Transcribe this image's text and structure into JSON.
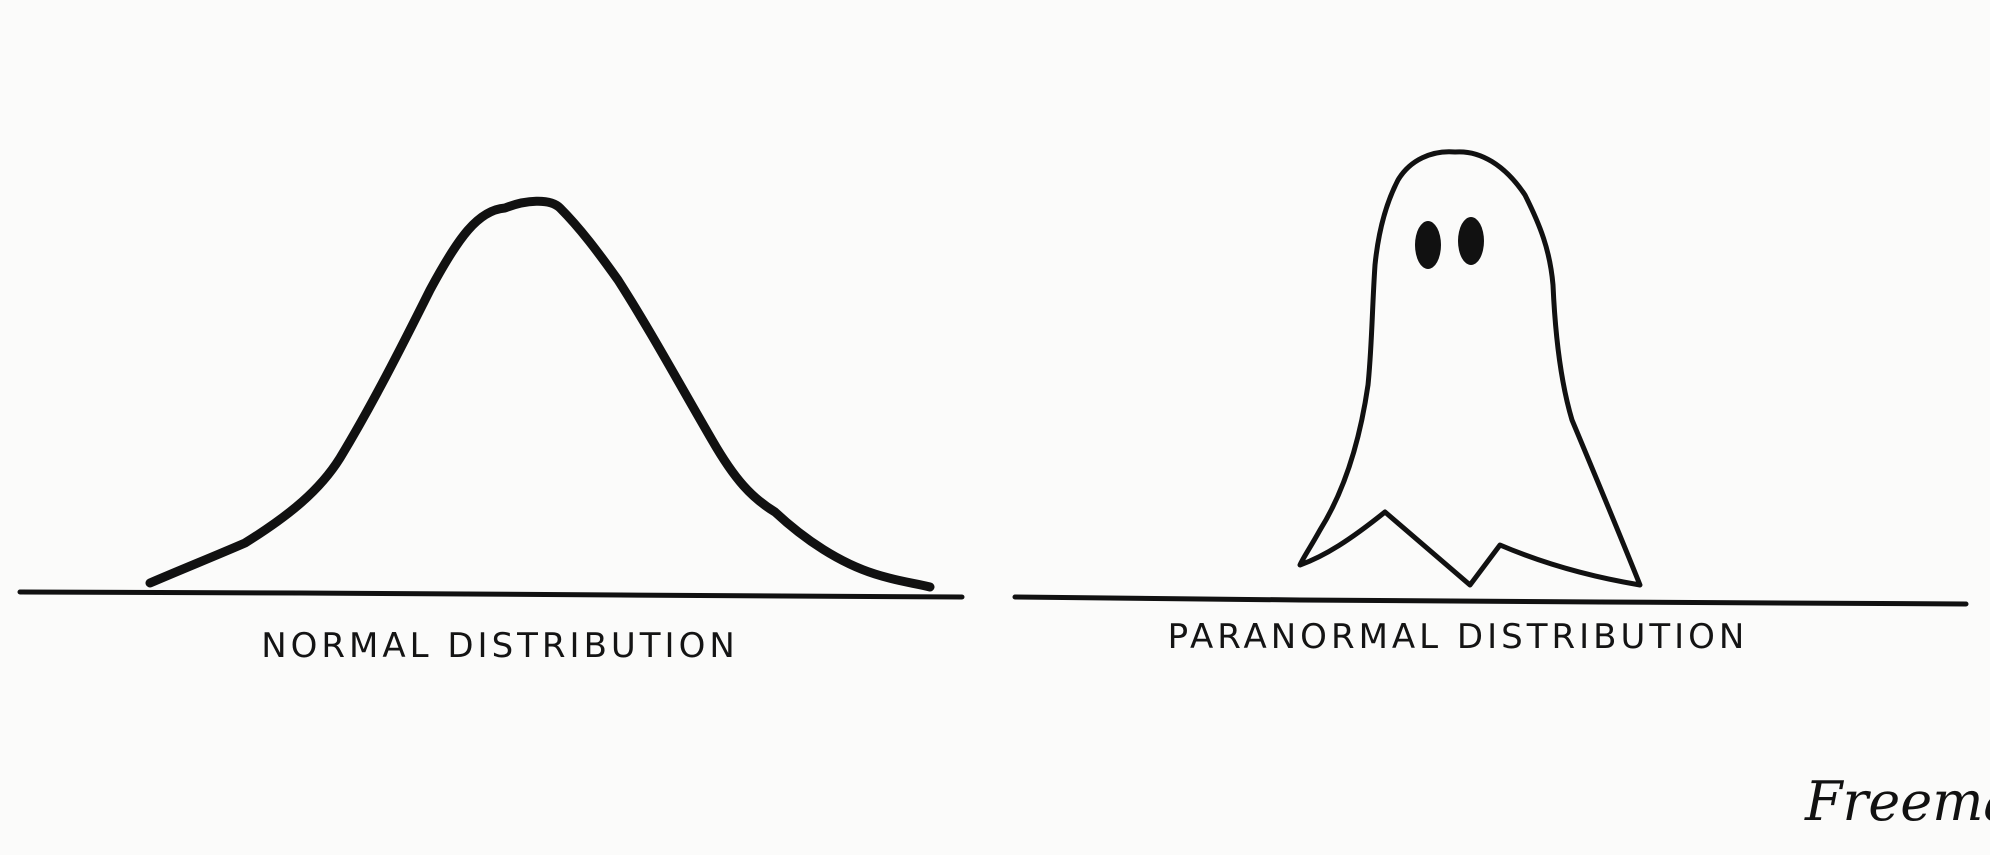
{
  "panels": {
    "left": {
      "caption": "NORMAL DISTRIBUTION",
      "drawing": "bell-curve"
    },
    "right": {
      "caption": "PARANORMAL DISTRIBUTION",
      "drawing": "ghost"
    }
  },
  "signature": "Freeman.",
  "colors": {
    "ink": "#111111",
    "paper": "#fbfbfa"
  }
}
